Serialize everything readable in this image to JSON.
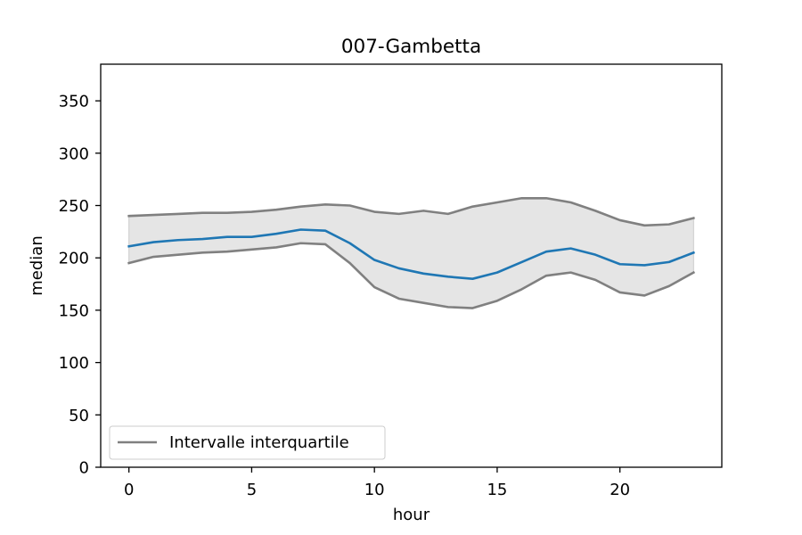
{
  "chart_data": {
    "type": "line",
    "title": "007-Gambetta",
    "xlabel": "hour",
    "ylabel": "median",
    "xlim": [
      -1.15,
      24.15
    ],
    "ylim": [
      0,
      385
    ],
    "xticks": [
      0,
      5,
      10,
      15,
      20
    ],
    "yticks": [
      0,
      50,
      100,
      150,
      200,
      250,
      300,
      350
    ],
    "grid": false,
    "legend_position": "lower-left",
    "x": [
      0,
      1,
      2,
      3,
      4,
      5,
      6,
      7,
      8,
      9,
      10,
      11,
      12,
      13,
      14,
      15,
      16,
      17,
      18,
      19,
      20,
      21,
      22,
      23
    ],
    "series": [
      {
        "name": "",
        "role": "median",
        "color": "#1f77b4",
        "values": [
          211,
          215,
          217,
          218,
          220,
          220,
          223,
          227,
          226,
          214,
          198,
          190,
          185,
          182,
          180,
          186,
          196,
          206,
          209,
          203,
          194,
          193,
          196,
          205
        ]
      },
      {
        "name": "Intervalle interquartile",
        "role": "upper-quartile",
        "color": "#808080",
        "values": [
          240,
          241,
          242,
          243,
          243,
          244,
          246,
          249,
          251,
          250,
          244,
          242,
          245,
          242,
          249,
          253,
          257,
          257,
          253,
          245,
          236,
          231,
          232,
          238
        ]
      },
      {
        "name": "",
        "role": "lower-quartile",
        "color": "#808080",
        "values": [
          195,
          201,
          203,
          205,
          206,
          208,
          210,
          214,
          213,
          195,
          172,
          161,
          157,
          153,
          152,
          159,
          170,
          183,
          186,
          179,
          167,
          164,
          173,
          186
        ]
      }
    ],
    "band_fill_color": "#e5e5e5",
    "legend": [
      "Intervalle interquartile"
    ]
  }
}
